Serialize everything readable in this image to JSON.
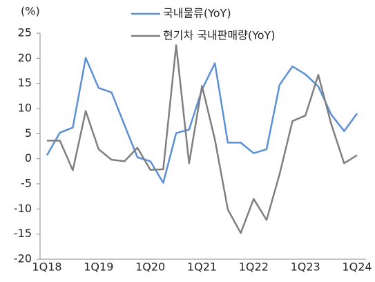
{
  "chart_data": {
    "type": "line",
    "y_label": "(%)",
    "categories": [
      "1Q18",
      null,
      null,
      null,
      "1Q19",
      null,
      null,
      null,
      "1Q20",
      null,
      null,
      null,
      "1Q21",
      null,
      null,
      null,
      "1Q22",
      null,
      null,
      null,
      "1Q23",
      null,
      null,
      null,
      "1Q24"
    ],
    "series": [
      {
        "name": "국내물류(YoY)",
        "color": "#5b8fd6",
        "values": [
          0.7,
          5.2,
          6.2,
          20.1,
          14.1,
          13.2,
          6.7,
          0.3,
          -0.5,
          -4.8,
          5.1,
          5.8,
          13.8,
          19.0,
          3.2,
          3.2,
          1.1,
          1.9,
          14.7,
          18.4,
          16.8,
          14.4,
          8.8,
          5.5,
          9.0
        ]
      },
      {
        "name": "현기차 국내판매량(YoY)",
        "color": "#7f7f7f",
        "values": [
          3.6,
          3.6,
          -2.3,
          9.5,
          1.9,
          -0.2,
          -0.5,
          2.2,
          -2.2,
          -2.1,
          22.6,
          -0.9,
          14.5,
          3.8,
          -10.1,
          -14.8,
          -8.0,
          -12.2,
          -3.1,
          7.5,
          8.6,
          16.7,
          6.9,
          -0.9,
          0.7
        ]
      }
    ],
    "ylim": [
      -20,
      25
    ],
    "yticks": [
      -20,
      -15,
      -10,
      -5,
      0,
      5,
      10,
      15,
      20,
      25
    ]
  }
}
